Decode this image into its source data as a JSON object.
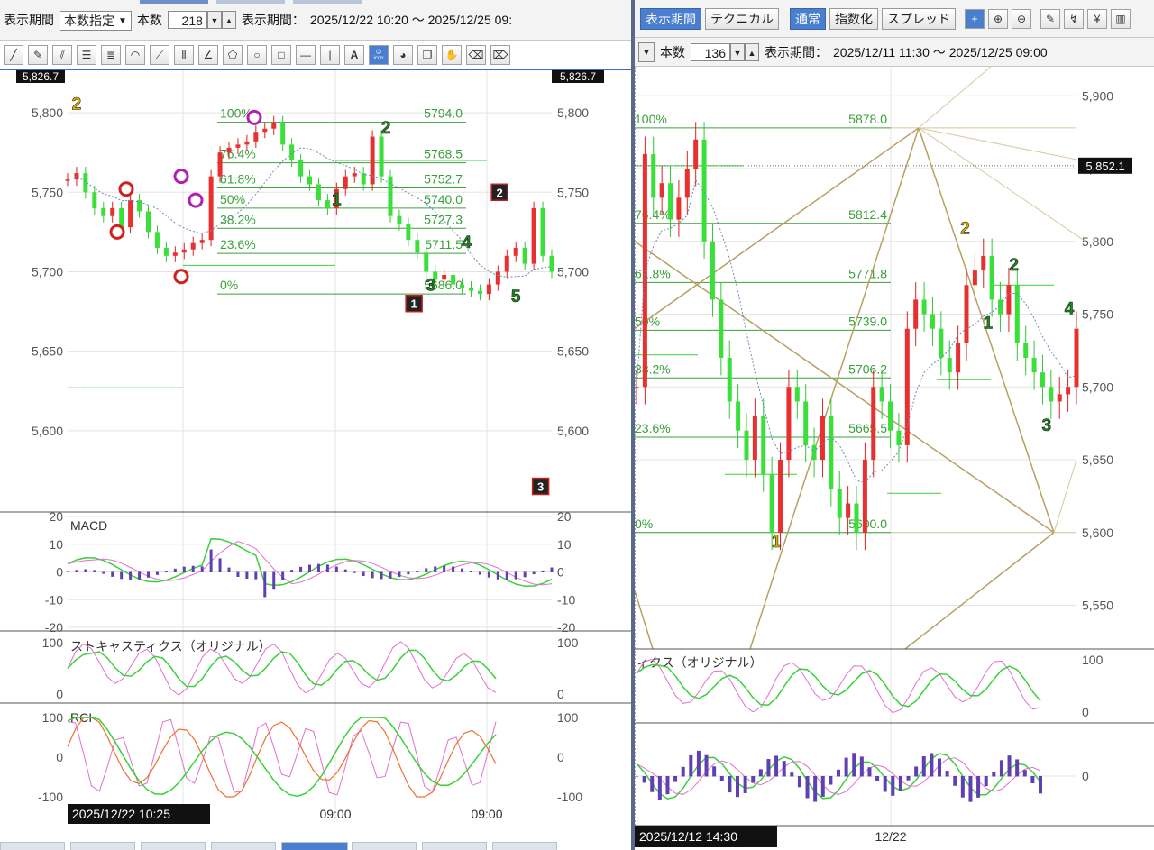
{
  "left": {
    "toolbar": {
      "period_label": "表示期間",
      "period_mode": "本数指定",
      "count_label": "本数",
      "count_value": "218",
      "range_label": "表示期間：",
      "range_value": "2025/12/22 10:20 ～ 2025/12/25 09:"
    },
    "draw_tools": [
      "line-icon",
      "pencil-icon",
      "parallel-lines-icon",
      "horizontal-lines-icon",
      "text-lines-icon",
      "fan-arc-icon",
      "gann-fan-icon",
      "vertical-lines-icon",
      "angle-icon",
      "pentagon-icon",
      "circle-icon",
      "rectangle-icon",
      "horizontal-line-icon",
      "vertical-line-icon",
      "text-icon",
      "smiley-icon",
      "stamp-icon",
      "copy-icon",
      "hand-icon",
      "eraser-icon",
      "eraser-all-icon"
    ],
    "text_tool_label": "A",
    "icon_tool_label": "icon",
    "price_panel": {
      "y_ticks": [
        "5,800",
        "5,750",
        "5,700",
        "5,650",
        "5,600"
      ],
      "current_left": "5,826.7",
      "current_right": "5,826.7",
      "fib": [
        {
          "pct": "100%",
          "value": "5794.0",
          "price": 5794.0
        },
        {
          "pct": "76.4%",
          "value": "5768.5",
          "price": 5768.5
        },
        {
          "pct": "61.8%",
          "value": "5752.7",
          "price": 5752.7
        },
        {
          "pct": "50%",
          "value": "5740.0",
          "price": 5740.0
        },
        {
          "pct": "38.2%",
          "value": "5727.3",
          "price": 5727.3
        },
        {
          "pct": "23.6%",
          "value": "5711.5",
          "price": 5711.5
        },
        {
          "pct": "0%",
          "value": "5686.0",
          "price": 5686.0
        }
      ],
      "wave_labels": [
        {
          "text": "2",
          "color": "#e0b000",
          "x": 2,
          "p": 5802
        },
        {
          "text": "1",
          "color": "#1a8a1a",
          "x": 60,
          "p": 5742
        },
        {
          "text": "2",
          "color": "#1a8a1a",
          "x": 71,
          "p": 5787
        },
        {
          "text": "4",
          "color": "#1a8a1a",
          "x": 89,
          "p": 5715
        },
        {
          "text": "3",
          "color": "#1a8a1a",
          "x": 81,
          "p": 5688
        },
        {
          "text": "5",
          "color": "#1a8a1a",
          "x": 100,
          "p": 5681
        }
      ],
      "box_labels": [
        {
          "text": "1",
          "x": 93,
          "p": 5680
        },
        {
          "text": "2",
          "x": 116,
          "p": 5750
        },
        {
          "text": "3",
          "x": 127,
          "p": 5565
        }
      ]
    },
    "macd": {
      "title": "MACD",
      "ticks": [
        "20",
        "10",
        "0",
        "-10",
        "-20"
      ]
    },
    "stoch": {
      "title": "ストキャスティクス（オリジナル）",
      "ticks": [
        "100",
        "0"
      ]
    },
    "rci": {
      "title": "RCI",
      "ticks": [
        "100",
        "0",
        "-100"
      ]
    },
    "x_axis": {
      "start_label": "2025/12/22 10:25",
      "ticks": [
        "09:00",
        "09:00"
      ]
    }
  },
  "right": {
    "toolbar": {
      "period_button": "表示期間",
      "technical_button": "テクニカル",
      "normal_button": "通常",
      "index_button": "指数化",
      "spread_button": "スプレッド",
      "add_symbol": "+",
      "yen_symbol": "¥",
      "count_label": "本数",
      "count_value": "136",
      "range_label": "表示期間：",
      "range_value": "2025/12/11 11:30 ～ 2025/12/25 09:00"
    },
    "price_panel": {
      "y_ticks": [
        "5,900",
        "5,850",
        "5,800",
        "5,750",
        "5,700",
        "5,650",
        "5,600",
        "5,550"
      ],
      "current": "5,852.1",
      "fib": [
        {
          "pct": "100%",
          "value": "5878.0",
          "price": 5878.0
        },
        {
          "pct": "76.4%",
          "value": "5812.4",
          "price": 5812.4
        },
        {
          "pct": "61.8%",
          "value": "5771.8",
          "price": 5771.8
        },
        {
          "pct": "50%",
          "value": "5739.0",
          "price": 5739.0
        },
        {
          "pct": "38.2%",
          "value": "5706.2",
          "price": 5706.2
        },
        {
          "pct": "23.6%",
          "value": "5665.5",
          "price": 5665.5
        },
        {
          "pct": "0%",
          "value": "5600.0",
          "price": 5600.0
        }
      ],
      "wave_labels": [
        {
          "text": "1",
          "color": "#e0b000",
          "x": 43,
          "p": 5590
        },
        {
          "text": "2",
          "color": "#e0b000",
          "x": 101,
          "p": 5805
        },
        {
          "text": "1",
          "color": "#1a8a1a",
          "x": 108,
          "p": 5740
        },
        {
          "text": "2",
          "color": "#1a8a1a",
          "x": 116,
          "p": 5780
        },
        {
          "text": "3",
          "color": "#1a8a1a",
          "x": 126,
          "p": 5670
        },
        {
          "text": "4",
          "color": "#1a8a1a",
          "x": 133,
          "p": 5750
        }
      ]
    },
    "stoch": {
      "title": "ィクス（オリジナル）",
      "ticks": [
        "100",
        "0"
      ]
    },
    "macd": {
      "ticks": [
        "0"
      ]
    },
    "x_axis": {
      "start_label": "2025/12/12 14:30",
      "ticks": [
        "12/22"
      ]
    }
  },
  "chart_data": [
    {
      "type": "line",
      "title": "",
      "note_series": "5-minute candlesticks with 3-line moving average, fibonacci retracement",
      "x_label_start": "2025/12/22 10:25",
      "ylim": [
        5550,
        5826.7
      ],
      "yticks": [
        5600,
        5650,
        5700,
        5750,
        5800
      ],
      "series": [
        {
          "values": [
            5758,
            5762,
            5750,
            5740,
            5735,
            5740,
            5728,
            5745,
            5738,
            5725,
            5715,
            5710,
            5712,
            5714,
            5718,
            5720,
            5760,
            5775,
            5778,
            5780,
            5782,
            5788,
            5790,
            5794,
            5780,
            5770,
            5760,
            5755,
            5745,
            5740,
            5752,
            5760,
            5762,
            5755,
            5785,
            5760,
            5735,
            5730,
            5720,
            5712,
            5700,
            5695,
            5698,
            5692,
            5690,
            5688,
            5686,
            5692,
            5700,
            5710,
            5715,
            5705,
            5740,
            5710,
            5700
          ]
        }
      ]
    },
    {
      "type": "line",
      "title": "",
      "x_label_start": "2025/12/12 14:30",
      "ylim": [
        5520,
        5920
      ],
      "yticks": [
        5550,
        5600,
        5650,
        5700,
        5750,
        5800,
        5850,
        5900
      ],
      "series": [
        {
          "values": [
            5700,
            5860,
            5830,
            5840,
            5815,
            5830,
            5850,
            5870,
            5800,
            5760,
            5720,
            5690,
            5670,
            5650,
            5680,
            5640,
            5600,
            5650,
            5700,
            5690,
            5660,
            5650,
            5680,
            5630,
            5610,
            5620,
            5600,
            5650,
            5700,
            5690,
            5670,
            5660,
            5740,
            5760,
            5750,
            5740,
            5720,
            5710,
            5730,
            5770,
            5780,
            5790,
            5760,
            5750,
            5770,
            5730,
            5720,
            5710,
            5700,
            5690,
            5695,
            5700,
            5740
          ]
        }
      ]
    }
  ]
}
